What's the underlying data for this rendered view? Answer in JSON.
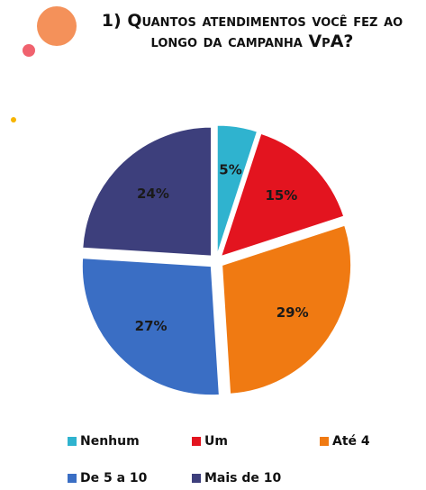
{
  "chart_data": {
    "type": "pie",
    "title": "1) Quantos atendimentos você fez ao longo da campanha VpA?",
    "categories": [
      "Nenhum",
      "Um",
      "Até 4",
      "De 5 a 10",
      "Mais de 10"
    ],
    "values": [
      5,
      15,
      29,
      27,
      24
    ],
    "value_labels": [
      "5%",
      "15%",
      "29%",
      "27%",
      "24%"
    ],
    "colors": [
      "#2fb3cf",
      "#e3141f",
      "#f07a12",
      "#3a6ec4",
      "#3d3f7c"
    ]
  }
}
